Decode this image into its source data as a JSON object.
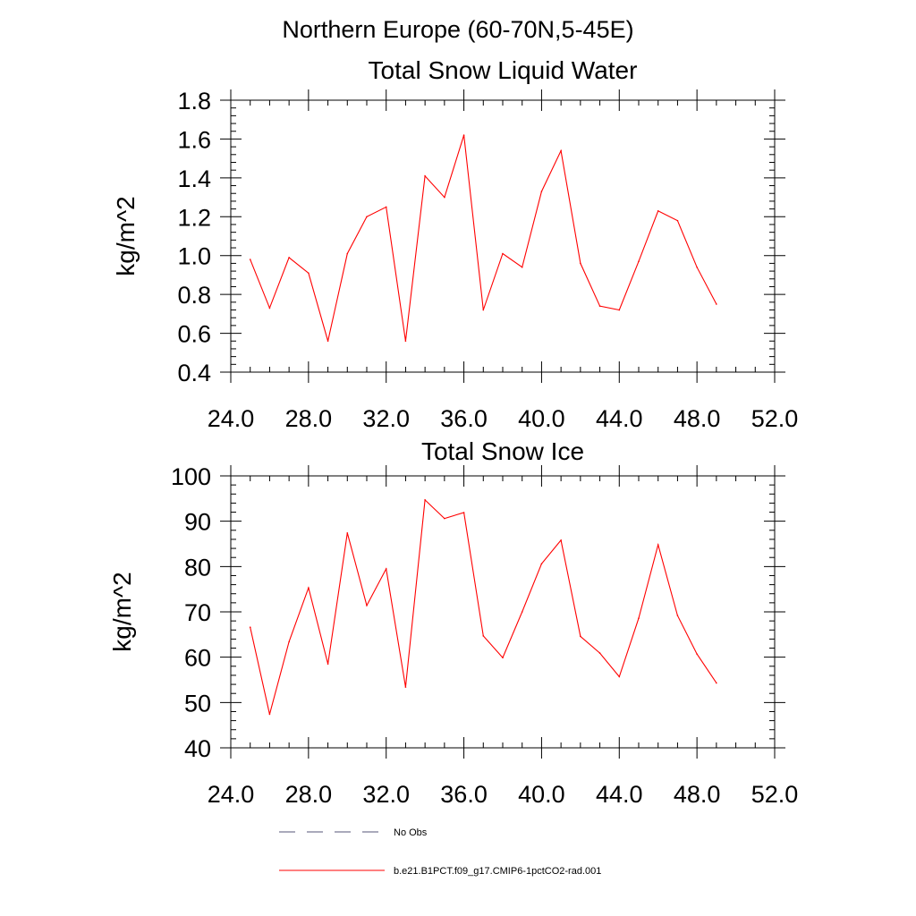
{
  "figure": {
    "suptitle": "Northern Europe (60-70N,5-45E)"
  },
  "chart_data": [
    {
      "type": "line",
      "title": "Total Snow Liquid Water",
      "xlabel": "",
      "ylabel": "kg/m^2",
      "xlim": [
        24,
        52
      ],
      "ylim": [
        0.4,
        1.8
      ],
      "xticks": [
        24,
        28,
        32,
        36,
        40,
        44,
        48,
        52
      ],
      "xtick_labels": [
        "24.0",
        "28.0",
        "32.0",
        "36.0",
        "40.0",
        "44.0",
        "48.0",
        "52.0"
      ],
      "yticks": [
        0.4,
        0.6,
        0.8,
        1.0,
        1.2,
        1.4,
        1.6,
        1.8
      ],
      "ytick_labels": [
        "0.4",
        "0.6",
        "0.8",
        "1.0",
        "1.2",
        "1.4",
        "1.6",
        "1.8"
      ],
      "grid": false,
      "series": [
        {
          "name": "b.e21.B1PCT.f09_g17.CMIP6-1pctCO2-rad.001",
          "color": "#ff0000",
          "x": [
            25,
            26,
            27,
            28,
            29,
            30,
            31,
            32,
            33,
            34,
            35,
            36,
            37,
            38,
            39,
            40,
            41,
            42,
            43,
            44,
            45,
            46,
            47,
            48,
            49
          ],
          "y": [
            0.98,
            0.73,
            0.99,
            0.91,
            0.56,
            1.01,
            1.2,
            1.25,
            0.56,
            1.41,
            1.3,
            1.62,
            0.72,
            1.01,
            0.94,
            1.33,
            1.54,
            0.96,
            0.74,
            0.72,
            0.97,
            1.23,
            1.18,
            0.94,
            0.75
          ]
        }
      ]
    },
    {
      "type": "line",
      "title": "Total Snow Ice",
      "xlabel": "",
      "ylabel": "kg/m^2",
      "xlim": [
        24,
        52
      ],
      "ylim": [
        40,
        100
      ],
      "xticks": [
        24,
        28,
        32,
        36,
        40,
        44,
        48,
        52
      ],
      "xtick_labels": [
        "24.0",
        "28.0",
        "32.0",
        "36.0",
        "40.0",
        "44.0",
        "48.0",
        "52.0"
      ],
      "yticks": [
        40,
        50,
        60,
        70,
        80,
        90,
        100
      ],
      "ytick_labels": [
        "40",
        "50",
        "60",
        "70",
        "80",
        "90",
        "100"
      ],
      "grid": false,
      "series": [
        {
          "name": "b.e21.B1PCT.f09_g17.CMIP6-1pctCO2-rad.001",
          "color": "#ff0000",
          "x": [
            25,
            26,
            27,
            28,
            29,
            30,
            31,
            32,
            33,
            34,
            35,
            36,
            37,
            38,
            39,
            40,
            41,
            42,
            43,
            44,
            45,
            46,
            47,
            48,
            49
          ],
          "y": [
            66.6,
            47.4,
            63.4,
            75.3,
            58.5,
            87.4,
            71.4,
            79.5,
            53.4,
            94.7,
            90.6,
            91.9,
            64.7,
            59.9,
            70.0,
            80.6,
            85.8,
            64.6,
            60.9,
            55.7,
            68.6,
            84.8,
            69.2,
            60.7,
            54.3
          ]
        }
      ]
    }
  ],
  "legend": {
    "placement": "bottom-center",
    "entries": [
      {
        "label": "No Obs",
        "style": "dashed",
        "color": "#555577"
      },
      {
        "label": "b.e21.B1PCT.f09_g17.CMIP6-1pctCO2-rad.001",
        "style": "solid",
        "color": "#ff0000"
      }
    ]
  }
}
